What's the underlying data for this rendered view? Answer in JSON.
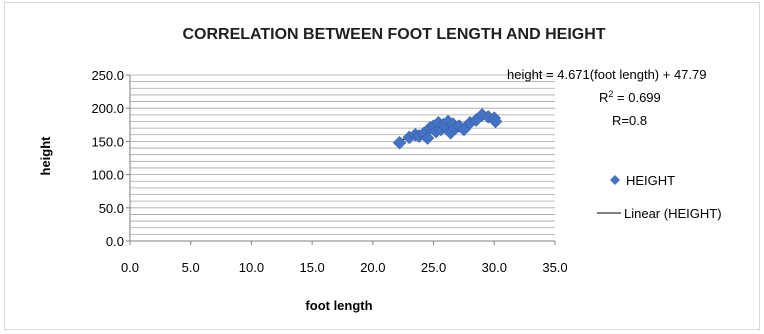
{
  "chart_data": {
    "type": "scatter",
    "title": "CORRELATION BETWEEN FOOT LENGTH AND HEIGHT",
    "xlabel": "foot length",
    "ylabel": "height",
    "xlim": [
      0,
      35
    ],
    "ylim": [
      0,
      250
    ],
    "x_ticks": [
      "0.0",
      "5.0",
      "10.0",
      "15.0",
      "20.0",
      "25.0",
      "30.0",
      "35.0"
    ],
    "y_ticks": [
      "0.0",
      "50.0",
      "100.0",
      "150.0",
      "200.0",
      "250.0"
    ],
    "grid": "horizontal minor gridlines",
    "legend_position": "right",
    "series": [
      {
        "name": "HEIGHT",
        "marker": "diamond",
        "color": "#4472C4",
        "x": [
          22.2,
          23.0,
          23.5,
          23.8,
          24.2,
          24.5,
          24.7,
          25.0,
          25.2,
          25.4,
          25.6,
          25.8,
          26.0,
          26.2,
          26.4,
          26.6,
          26.8,
          27.1,
          27.5,
          28.0,
          28.5,
          29.0,
          29.5,
          30.0,
          30.1
        ],
        "y": [
          148,
          156,
          160,
          158,
          162,
          155,
          170,
          173,
          165,
          178,
          168,
          175,
          172,
          180,
          163,
          176,
          170,
          173,
          168,
          178,
          182,
          190,
          187,
          185,
          180
        ]
      }
    ],
    "trendline": {
      "name": "Linear (HEIGHT)",
      "type": "linear",
      "slope": 4.671,
      "intercept": 47.79,
      "x_range": [
        22.2,
        30.1
      ],
      "color": "#000000"
    },
    "annotations": {
      "equation": "height = 4.671(foot length) + 47.79",
      "r_squared_label": "R",
      "r_squared_sup": "2",
      "r_squared_value": " = 0.699",
      "r_value": "R=0.8"
    }
  }
}
